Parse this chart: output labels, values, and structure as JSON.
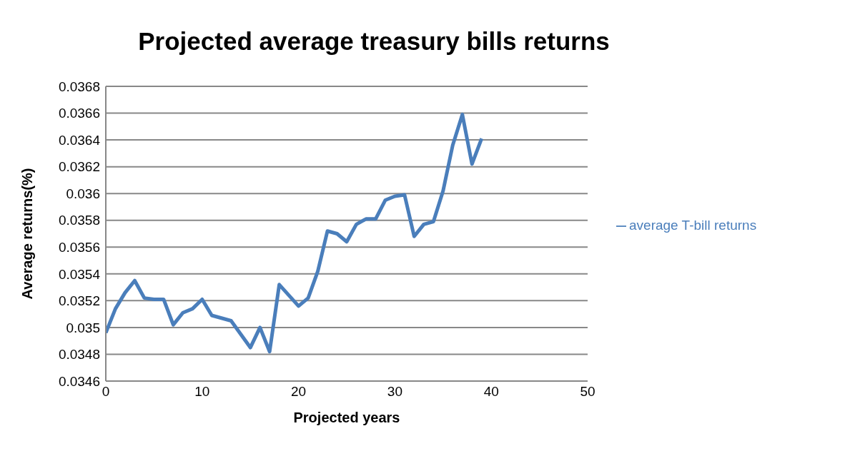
{
  "chart_data": {
    "type": "line",
    "title": "Projected average treasury bills returns",
    "xlabel": "Projected years",
    "ylabel": "Average returns(%)",
    "x": [
      0,
      1,
      2,
      3,
      4,
      5,
      6,
      7,
      8,
      9,
      10,
      11,
      12,
      13,
      14,
      15,
      16,
      17,
      18,
      19,
      20,
      21,
      22,
      23,
      24,
      25,
      26,
      27,
      28,
      29,
      30,
      31,
      32,
      33,
      34,
      35,
      36,
      37,
      38,
      39
    ],
    "series": [
      {
        "name": "average T-bill returns",
        "color": "#4a7ebb",
        "values": [
          0.03496,
          0.03514,
          0.03526,
          0.03535,
          0.03522,
          0.03521,
          0.03521,
          0.03502,
          0.03511,
          0.03514,
          0.03521,
          0.03509,
          0.03507,
          0.03505,
          0.03495,
          0.03485,
          0.035,
          0.03482,
          0.03532,
          0.03524,
          0.03516,
          0.03522,
          0.03542,
          0.03572,
          0.0357,
          0.03564,
          0.03577,
          0.03581,
          0.03581,
          0.03595,
          0.03598,
          0.03599,
          0.03568,
          0.03577,
          0.03579,
          0.03602,
          0.03636,
          0.03659,
          0.03622,
          0.03641
        ]
      }
    ],
    "xlim": [
      0,
      50
    ],
    "xticks": [
      0,
      10,
      20,
      30,
      40,
      50
    ],
    "ylim": [
      0.0346,
      0.0368
    ],
    "yticks": [
      0.0346,
      0.0348,
      0.035,
      0.0352,
      0.0354,
      0.0356,
      0.0358,
      0.036,
      0.0362,
      0.0364,
      0.0366,
      0.0368
    ],
    "grid": "y",
    "legend": "right",
    "marker": "none",
    "line_style": "solid"
  }
}
